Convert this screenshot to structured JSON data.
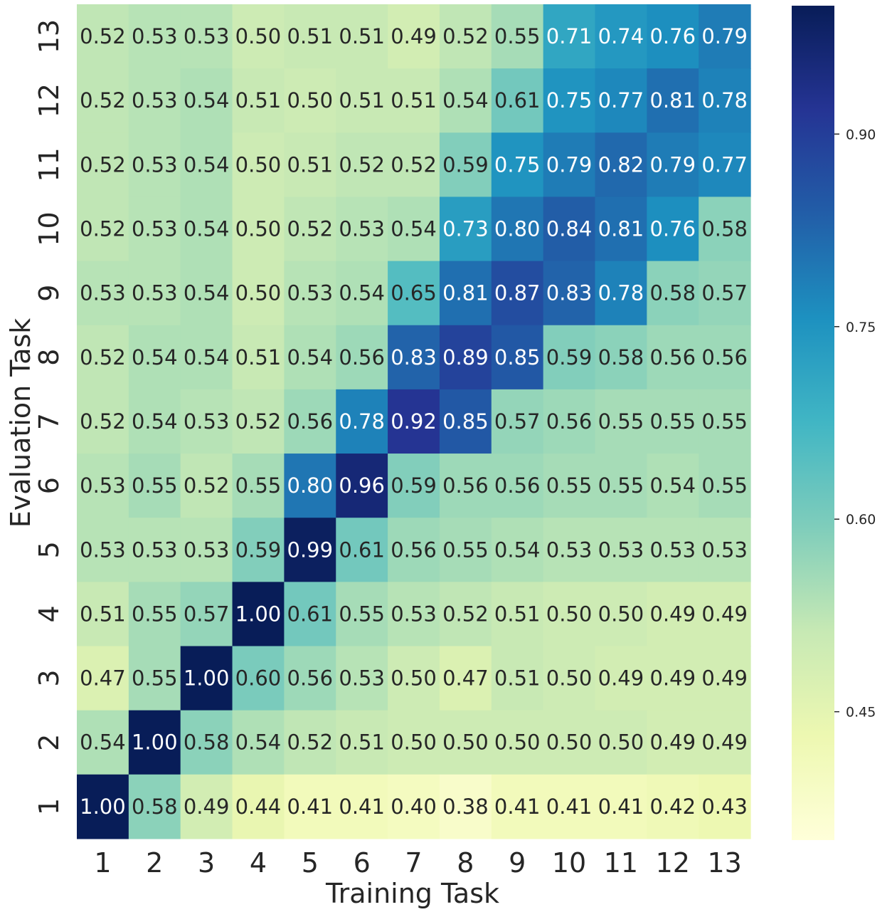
{
  "chart_data": {
    "type": "heatmap",
    "xlabel": "Training Task",
    "ylabel": "Evaluation Task",
    "x_categories": [
      "1",
      "2",
      "3",
      "4",
      "5",
      "6",
      "7",
      "8",
      "9",
      "10",
      "11",
      "12",
      "13"
    ],
    "y_categories": [
      "13",
      "12",
      "11",
      "10",
      "9",
      "8",
      "7",
      "6",
      "5",
      "4",
      "3",
      "2",
      "1"
    ],
    "values": [
      [
        "0.52",
        "0.53",
        "0.53",
        "0.50",
        "0.51",
        "0.51",
        "0.49",
        "0.52",
        "0.55",
        "0.71",
        "0.74",
        "0.76",
        "0.79"
      ],
      [
        "0.52",
        "0.53",
        "0.54",
        "0.51",
        "0.50",
        "0.51",
        "0.51",
        "0.54",
        "0.61",
        "0.75",
        "0.77",
        "0.81",
        "0.78"
      ],
      [
        "0.52",
        "0.53",
        "0.54",
        "0.50",
        "0.51",
        "0.52",
        "0.52",
        "0.59",
        "0.75",
        "0.79",
        "0.82",
        "0.79",
        "0.77"
      ],
      [
        "0.52",
        "0.53",
        "0.54",
        "0.50",
        "0.52",
        "0.53",
        "0.54",
        "0.73",
        "0.80",
        "0.84",
        "0.81",
        "0.76",
        "0.58"
      ],
      [
        "0.53",
        "0.53",
        "0.54",
        "0.50",
        "0.53",
        "0.54",
        "0.65",
        "0.81",
        "0.87",
        "0.83",
        "0.78",
        "0.58",
        "0.57"
      ],
      [
        "0.52",
        "0.54",
        "0.54",
        "0.51",
        "0.54",
        "0.56",
        "0.83",
        "0.89",
        "0.85",
        "0.59",
        "0.58",
        "0.56",
        "0.56"
      ],
      [
        "0.52",
        "0.54",
        "0.53",
        "0.52",
        "0.56",
        "0.78",
        "0.92",
        "0.85",
        "0.57",
        "0.56",
        "0.55",
        "0.55",
        "0.55"
      ],
      [
        "0.53",
        "0.55",
        "0.52",
        "0.55",
        "0.80",
        "0.96",
        "0.59",
        "0.56",
        "0.56",
        "0.55",
        "0.55",
        "0.54",
        "0.55"
      ],
      [
        "0.53",
        "0.53",
        "0.53",
        "0.59",
        "0.99",
        "0.61",
        "0.56",
        "0.55",
        "0.54",
        "0.53",
        "0.53",
        "0.53",
        "0.53"
      ],
      [
        "0.51",
        "0.55",
        "0.57",
        "1.00",
        "0.61",
        "0.55",
        "0.53",
        "0.52",
        "0.51",
        "0.50",
        "0.50",
        "0.49",
        "0.49"
      ],
      [
        "0.47",
        "0.55",
        "1.00",
        "0.60",
        "0.56",
        "0.53",
        "0.50",
        "0.47",
        "0.51",
        "0.50",
        "0.49",
        "0.49",
        "0.49"
      ],
      [
        "0.54",
        "1.00",
        "0.58",
        "0.54",
        "0.52",
        "0.51",
        "0.50",
        "0.50",
        "0.50",
        "0.50",
        "0.50",
        "0.49",
        "0.49"
      ],
      [
        "1.00",
        "0.58",
        "0.49",
        "0.44",
        "0.41",
        "0.41",
        "0.40",
        "0.38",
        "0.41",
        "0.41",
        "0.41",
        "0.42",
        "0.43"
      ]
    ],
    "colormap": "YlGnBu",
    "vmin": 0.35,
    "vmax": 1.0,
    "colorbar_ticks": [
      "0.45",
      "0.60",
      "0.75",
      "0.90"
    ],
    "text_color_dark": "#262626",
    "text_color_light": "#ffffff"
  }
}
